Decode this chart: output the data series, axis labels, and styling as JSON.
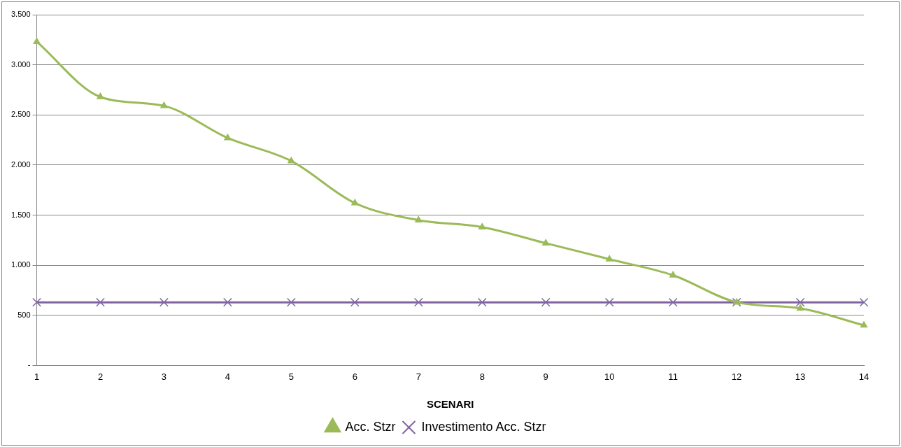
{
  "chart_data": {
    "type": "line",
    "xlabel": "SCENARI",
    "categories": [
      "1",
      "2",
      "3",
      "4",
      "5",
      "6",
      "7",
      "8",
      "9",
      "10",
      "11",
      "12",
      "13",
      "14"
    ],
    "series": [
      {
        "name": "Acc. Stzr",
        "color": "#9bbb59",
        "marker": "triangle",
        "values": [
          3230,
          2680,
          2590,
          2270,
          2040,
          1620,
          1450,
          1380,
          1220,
          1060,
          900,
          630,
          570,
          400
        ]
      },
      {
        "name": "Investimento Acc. Stzr",
        "color": "#8064a2",
        "marker": "cross",
        "values": [
          630,
          630,
          630,
          630,
          630,
          630,
          630,
          630,
          630,
          630,
          630,
          630,
          630,
          630
        ]
      }
    ],
    "ylim": [
      0,
      3500
    ],
    "yticks": [
      {
        "value": 0,
        "label": "-"
      },
      {
        "value": 500,
        "label": "500"
      },
      {
        "value": 1000,
        "label": "1.000"
      },
      {
        "value": 1500,
        "label": "1.500"
      },
      {
        "value": 2000,
        "label": "2.000"
      },
      {
        "value": 2500,
        "label": "2.500"
      },
      {
        "value": 3000,
        "label": "3.000"
      },
      {
        "value": 3500,
        "label": "3.500"
      }
    ],
    "grid": "y",
    "legend": "bottom",
    "line_style": "solid"
  }
}
